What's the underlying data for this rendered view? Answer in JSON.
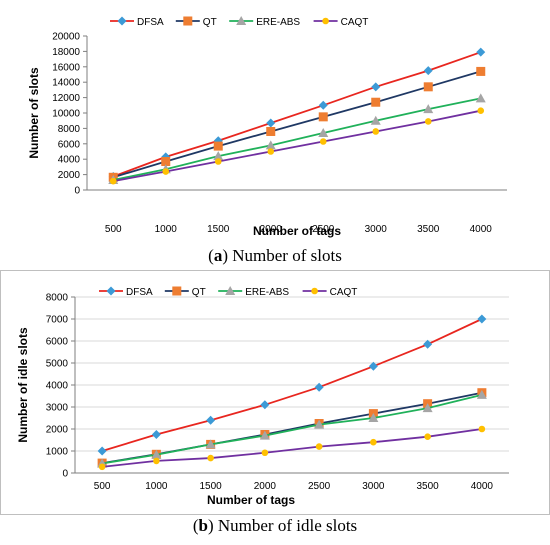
{
  "colors": {
    "DFSA": "#e8261f",
    "QT": "#1f3864",
    "ERE-ABS": "#20b15a",
    "CAQT": "#7030a0",
    "marker_DFSA": "#3c9ad6",
    "marker_QT": "#ee7d31",
    "marker_ERE-ABS": "#a5a5a5",
    "marker_CAQT": "#ffc000",
    "grid": "#d9d9d9",
    "axis": "#7f7f7f"
  },
  "captions": [
    {
      "label": "a",
      "text": "Number of slots"
    },
    {
      "label": "b",
      "text": "Number of idle slots"
    }
  ],
  "chart_data": [
    {
      "type": "line",
      "title": "",
      "xlabel": "Number of tags",
      "ylabel": "Number of slots",
      "categories": [
        "500",
        "1000",
        "1500",
        "2000",
        "2500",
        "3000",
        "3500",
        "4000"
      ],
      "ylim": [
        0,
        20000
      ],
      "yticks": [
        0,
        2000,
        4000,
        6000,
        8000,
        10000,
        12000,
        14000,
        16000,
        18000,
        20000
      ],
      "grid": false,
      "legend": "top-left",
      "series": [
        {
          "name": "DFSA",
          "marker": "diamond",
          "values": [
            1750,
            4300,
            6400,
            8700,
            11000,
            13400,
            15500,
            17900
          ]
        },
        {
          "name": "QT",
          "marker": "square",
          "values": [
            1650,
            3700,
            5700,
            7600,
            9500,
            11400,
            13400,
            15400
          ]
        },
        {
          "name": "ERE-ABS",
          "marker": "triangle",
          "values": [
            1300,
            2700,
            4400,
            5800,
            7400,
            9000,
            10500,
            11900
          ]
        },
        {
          "name": "CAQT",
          "marker": "circle",
          "values": [
            1150,
            2400,
            3700,
            5000,
            6300,
            7600,
            8900,
            10300
          ]
        }
      ]
    },
    {
      "type": "line",
      "title": "",
      "xlabel": "Number of tags",
      "ylabel": "Number of idle slots",
      "categories": [
        "500",
        "1000",
        "1500",
        "2000",
        "2500",
        "3000",
        "3500",
        "4000"
      ],
      "ylim": [
        0,
        8000
      ],
      "yticks": [
        0,
        1000,
        2000,
        3000,
        4000,
        5000,
        6000,
        7000,
        8000
      ],
      "grid": true,
      "legend": "top-left",
      "series": [
        {
          "name": "DFSA",
          "marker": "diamond",
          "values": [
            1000,
            1750,
            2400,
            3100,
            3900,
            4850,
            5850,
            7000
          ]
        },
        {
          "name": "QT",
          "marker": "square",
          "values": [
            450,
            850,
            1300,
            1750,
            2250,
            2700,
            3150,
            3650
          ]
        },
        {
          "name": "ERE-ABS",
          "marker": "triangle",
          "values": [
            430,
            830,
            1300,
            1700,
            2200,
            2500,
            2950,
            3550
          ]
        },
        {
          "name": "CAQT",
          "marker": "circle",
          "values": [
            280,
            550,
            680,
            920,
            1200,
            1400,
            1650,
            2000
          ]
        }
      ]
    }
  ]
}
